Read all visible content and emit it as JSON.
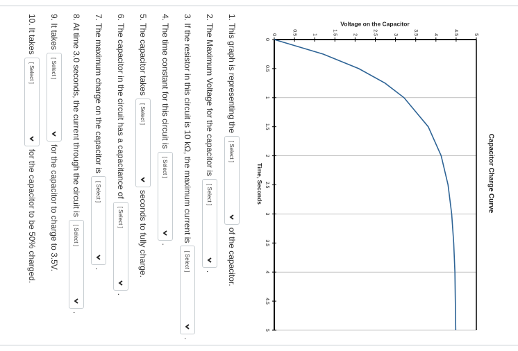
{
  "chart_data": {
    "type": "line",
    "title": "Capacitor Charge Curve",
    "x_label": "Time, Seconds",
    "y_label": "Voltage on the Capacitor",
    "x": [
      0,
      0.25,
      0.5,
      0.75,
      1,
      1.5,
      2,
      2.5,
      3,
      3.5,
      4,
      4.5,
      5
    ],
    "values": [
      0,
      1.21,
      2.09,
      2.74,
      3.21,
      3.81,
      4.13,
      4.3,
      4.39,
      4.44,
      4.47,
      4.48,
      4.49
    ],
    "color": "#2e6496",
    "xlim": [
      0,
      5
    ],
    "xticks": [
      0,
      0.5,
      1,
      1.5,
      2,
      2.5,
      3,
      3.5,
      4,
      4.5,
      5
    ],
    "ylim": [
      0,
      5
    ],
    "yticks": [
      0,
      0.5,
      1,
      1.5,
      2,
      2.5,
      3,
      3.5,
      4,
      4.5,
      5
    ],
    "grid": true
  },
  "questions": [
    {
      "before": "1. This graph is representing the",
      "select": "[ Select ]",
      "after": "of the capacitor."
    },
    {
      "before": "2. The Maximum Voltage for the capacitor is",
      "select": "[ Select ]",
      "after": "."
    },
    {
      "before": "3. If the resistor in this circuit is 10 kΩ, the maximum current is",
      "select": "[ Select ]",
      "after": "."
    },
    {
      "before": "4. The time constant for this circuit is",
      "select": "[ Select ]",
      "after": "."
    },
    {
      "before": "5. The capacitor takes",
      "select": "[ Select ]",
      "after": "seconds to fully charge."
    },
    {
      "before": "6. The capacitor in the circuit has a capacitance of",
      "select": "[ Select ]",
      "after": "."
    },
    {
      "before": "7. The maximum charge on the capacitor is",
      "select": "[ Select ]",
      "after": "."
    },
    {
      "before": "8. At time 3.0 seconds, the current through the circuit is",
      "select": "[ Select ]",
      "after": "."
    },
    {
      "before": "9. It takes",
      "select": "[ Select ]",
      "after": "for the capacitor to charge to 3.5V."
    },
    {
      "before": "10. It takes",
      "select": "[ Select ]",
      "after": "for the capacitor to be 50% charged."
    }
  ]
}
